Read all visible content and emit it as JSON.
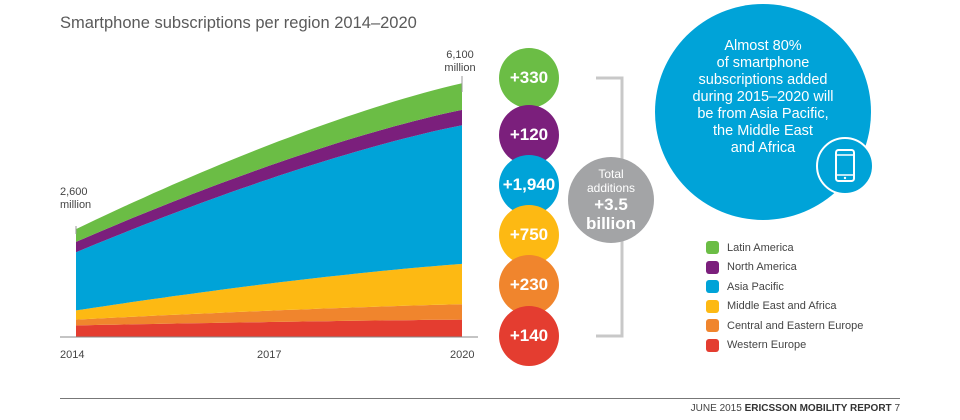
{
  "title": "Smartphone subscriptions per region 2014–2020",
  "annotations": {
    "start_value": "2,600",
    "start_unit": "million",
    "end_value": "6,100",
    "end_unit": "million"
  },
  "chart_data": {
    "type": "area",
    "stacked": true,
    "title": "Smartphone subscriptions per region 2014–2020",
    "x": [
      2014,
      2020
    ],
    "x_ticks": [
      "2014",
      "2017",
      "2020"
    ],
    "ylim": [
      0,
      6600
    ],
    "series": [
      {
        "name": "Western Europe",
        "values": [
          280,
          420
        ],
        "color": "#e43d30"
      },
      {
        "name": "Central and Eastern Europe",
        "values": [
          140,
          370
        ],
        "color": "#f0852d"
      },
      {
        "name": "Middle East and Africa",
        "values": [
          220,
          970
        ],
        "color": "#fdb913"
      },
      {
        "name": "Asia Pacific",
        "values": [
          1400,
          3340
        ],
        "color": "#00a3d8"
      },
      {
        "name": "North America",
        "values": [
          250,
          370
        ],
        "color": "#7b1f7c"
      },
      {
        "name": "Latin America",
        "values": [
          310,
          640
        ],
        "color": "#6bbd45"
      }
    ]
  },
  "bubbles": [
    {
      "label": "+330",
      "color": "#6bbd45"
    },
    {
      "label": "+120",
      "color": "#7b1f7c"
    },
    {
      "label": "+1,940",
      "color": "#00a3d8"
    },
    {
      "label": "+750",
      "color": "#fdb913"
    },
    {
      "label": "+230",
      "color": "#f0852d"
    },
    {
      "label": "+140",
      "color": "#e43d30"
    }
  ],
  "total": {
    "line1": "Total",
    "line2": "additions",
    "line3": "+3.5",
    "line4": "billion"
  },
  "callout": {
    "lines": [
      "Almost 80%",
      "of smartphone",
      "subscriptions added",
      "during 2015–2020 will",
      "be from Asia Pacific,",
      "the Middle East",
      "and Africa"
    ],
    "icon": "smartphone-icon"
  },
  "legend": [
    {
      "name": "Latin America",
      "color": "#6bbd45"
    },
    {
      "name": "North America",
      "color": "#7b1f7c"
    },
    {
      "name": "Asia Pacific",
      "color": "#00a3d8"
    },
    {
      "name": "Middle East and Africa",
      "color": "#fdb913"
    },
    {
      "name": "Central and Eastern Europe",
      "color": "#f0852d"
    },
    {
      "name": "Western Europe",
      "color": "#e43d30"
    }
  ],
  "footer": {
    "date": "JUNE 2015",
    "report": "ERICSSON MOBILITY REPORT",
    "page": "7"
  }
}
